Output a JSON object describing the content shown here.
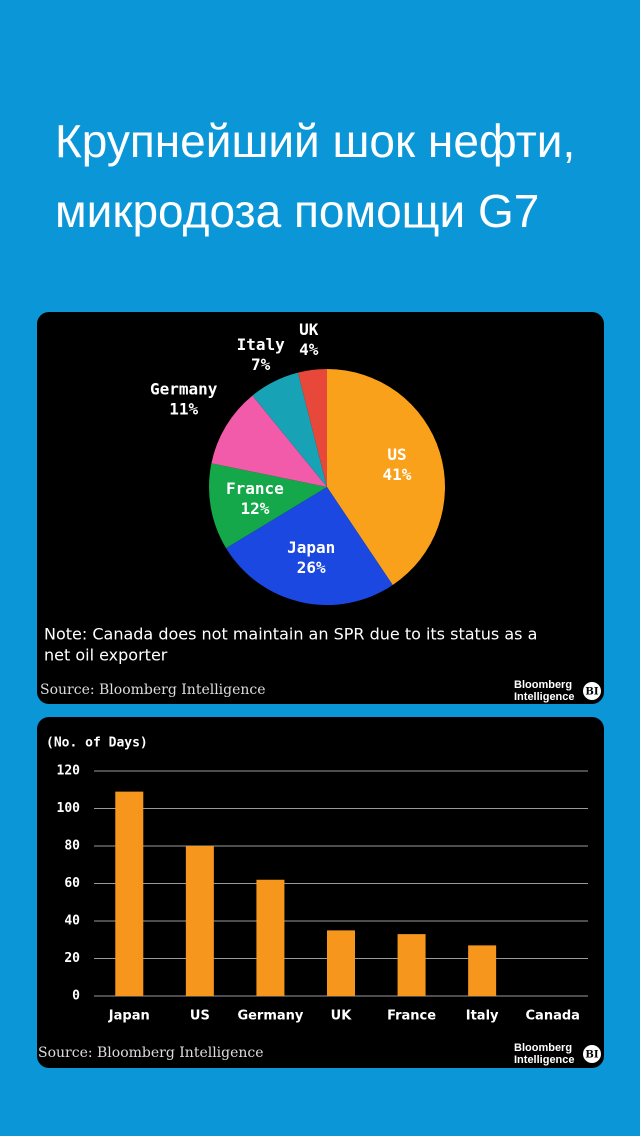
{
  "header": {
    "title": [
      "Крупнейший шок нефти,",
      "микродоза помощи G7"
    ]
  },
  "chart_data": [
    {
      "type": "pie",
      "categories": [
        "US",
        "Japan",
        "France",
        "Germany",
        "Italy",
        "UK"
      ],
      "values": [
        41,
        26,
        12,
        11,
        7,
        4
      ],
      "value_labels": [
        "41%",
        "26%",
        "12%",
        "11%",
        "7%",
        "4%"
      ],
      "colors": [
        "#f9a11b",
        "#1b48e0",
        "#15a84a",
        "#f25ba9",
        "#18a2b6",
        "#e8483a"
      ],
      "note": [
        "Note: Canada does not maintain an SPR due to its status as a",
        "net oil exporter"
      ],
      "source": "Source: Bloomberg Intelligence",
      "brand": {
        "text": [
          "Bloomberg",
          "Intelligence"
        ],
        "mark": "BI"
      }
    },
    {
      "type": "bar",
      "y_label": "(No. of Days)",
      "categories": [
        "Japan",
        "US",
        "Germany",
        "UK",
        "France",
        "Italy",
        "Canada"
      ],
      "values": [
        109,
        80,
        62,
        35,
        33,
        27,
        null
      ],
      "color": "#f7961c",
      "ylim": [
        0,
        120
      ],
      "yticks": [
        0,
        20,
        40,
        60,
        80,
        100,
        120
      ],
      "grid": true,
      "source": "Source: Bloomberg Intelligence",
      "brand": {
        "text": [
          "Bloomberg",
          "Intelligence"
        ],
        "mark": "BI"
      }
    }
  ]
}
